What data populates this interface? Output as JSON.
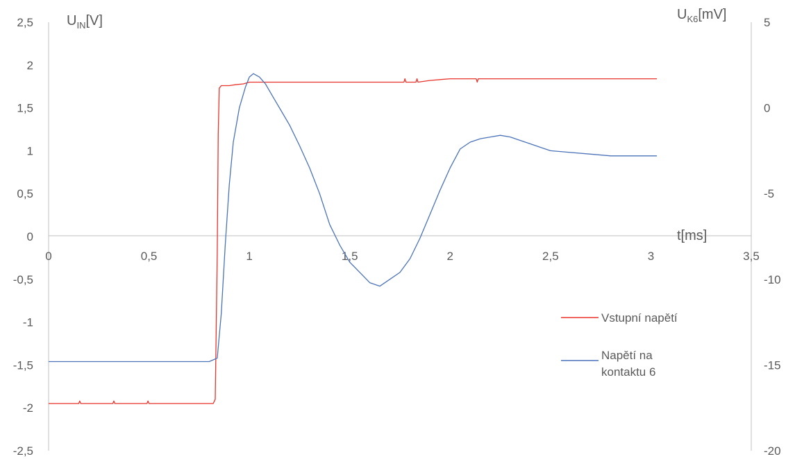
{
  "chart_data": {
    "type": "line",
    "title": "",
    "x_axis": {
      "label": "t[ms]",
      "range": [
        0,
        3.5
      ],
      "ticks": [
        "0",
        "0,5",
        "1",
        "1,5",
        "2",
        "2,5",
        "3",
        "3,5"
      ]
    },
    "y_axis_left": {
      "label_main": "U",
      "label_sub": "IN",
      "label_unit": "[V]",
      "range": [
        -2.5,
        2.5
      ],
      "ticks": [
        "2,5",
        "2",
        "1,5",
        "1",
        "0,5",
        "0",
        "-0,5",
        "-1",
        "-1,5",
        "-2",
        "-2,5"
      ]
    },
    "y_axis_right": {
      "label_main": "U",
      "label_sub": "K6",
      "label_unit": "[mV]",
      "range": [
        -20,
        5
      ],
      "ticks": [
        "5",
        "0",
        "-5",
        "-10",
        "-15",
        "-20"
      ]
    },
    "grid": false,
    "legend_position": "right",
    "series": [
      {
        "name": "Vstupní napětí",
        "axis": "left",
        "color": "#e8332a",
        "x": [
          0,
          0.15,
          0.155,
          0.16,
          0.32,
          0.325,
          0.33,
          0.49,
          0.495,
          0.5,
          0.82,
          0.83,
          0.84,
          0.845,
          0.85,
          0.86,
          0.9,
          0.93,
          0.97,
          1.0,
          1.2,
          1.5,
          1.77,
          1.775,
          1.78,
          1.83,
          1.835,
          1.84,
          1.9,
          1.95,
          2.0,
          2.13,
          2.135,
          2.14,
          2.5,
          3.03
        ],
        "y": [
          -1.95,
          -1.95,
          -1.92,
          -1.95,
          -1.95,
          -1.92,
          -1.95,
          -1.95,
          -1.92,
          -1.95,
          -1.95,
          -1.9,
          -0.2,
          1.2,
          1.73,
          1.76,
          1.76,
          1.77,
          1.78,
          1.8,
          1.8,
          1.8,
          1.8,
          1.84,
          1.8,
          1.8,
          1.84,
          1.8,
          1.82,
          1.83,
          1.84,
          1.84,
          1.8,
          1.84,
          1.84,
          1.84
        ]
      },
      {
        "name": "Napětí na kontaktu 6",
        "axis": "right",
        "color": "#4a72b8",
        "x": [
          0,
          0.1,
          0.2,
          0.3,
          0.4,
          0.5,
          0.6,
          0.7,
          0.75,
          0.8,
          0.84,
          0.86,
          0.88,
          0.9,
          0.92,
          0.95,
          0.98,
          1.0,
          1.02,
          1.05,
          1.08,
          1.12,
          1.16,
          1.2,
          1.25,
          1.3,
          1.35,
          1.4,
          1.45,
          1.5,
          1.55,
          1.6,
          1.65,
          1.7,
          1.75,
          1.8,
          1.85,
          1.9,
          1.95,
          2.0,
          2.05,
          2.1,
          2.15,
          2.2,
          2.25,
          2.3,
          2.35,
          2.4,
          2.45,
          2.5,
          2.6,
          2.7,
          2.8,
          2.9,
          3.03
        ],
        "y": [
          -14.8,
          -14.8,
          -14.8,
          -14.8,
          -14.8,
          -14.8,
          -14.8,
          -14.8,
          -14.8,
          -14.8,
          -14.6,
          -12.0,
          -8.0,
          -4.5,
          -2.0,
          0.0,
          1.2,
          1.8,
          2.0,
          1.8,
          1.4,
          0.6,
          -0.2,
          -1.0,
          -2.2,
          -3.5,
          -5.0,
          -6.8,
          -8.0,
          -9.0,
          -9.6,
          -10.2,
          -10.4,
          -10.0,
          -9.6,
          -8.8,
          -7.6,
          -6.2,
          -4.8,
          -3.5,
          -2.4,
          -2.0,
          -1.8,
          -1.7,
          -1.6,
          -1.7,
          -1.9,
          -2.1,
          -2.3,
          -2.5,
          -2.6,
          -2.7,
          -2.8,
          -2.8,
          -2.8
        ]
      }
    ]
  }
}
